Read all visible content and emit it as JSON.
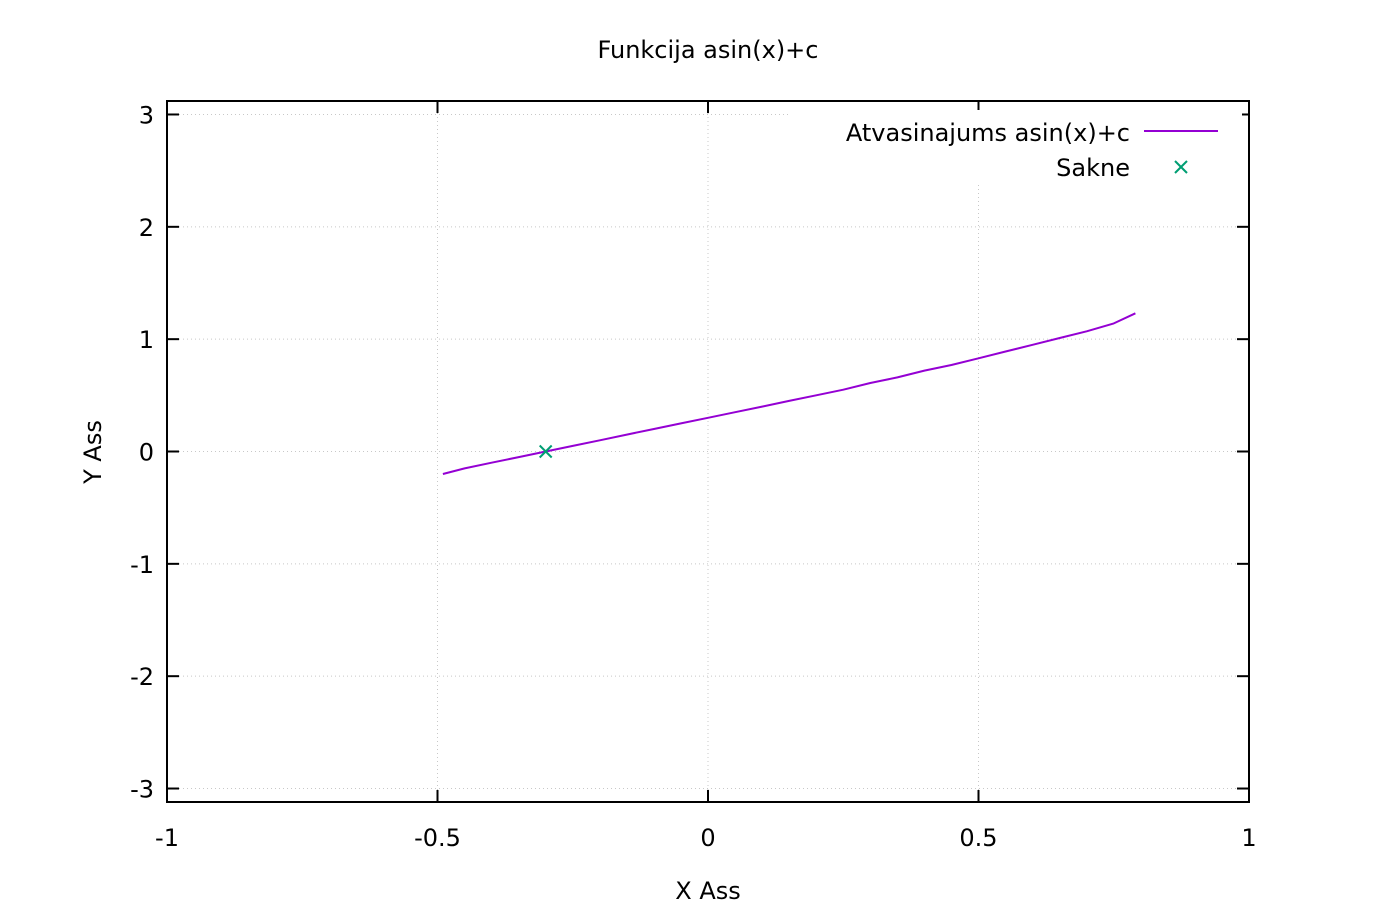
{
  "chart_data": {
    "type": "line",
    "title": "Funkcija asin(x)+c",
    "xlabel": "X Ass",
    "ylabel": "Y Ass",
    "xlim": [
      -1,
      1
    ],
    "ylim": [
      -3.12,
      3.12
    ],
    "xticks": [
      -1,
      -0.5,
      0,
      0.5,
      1
    ],
    "xtick_labels": [
      "-1",
      "-0.5",
      "0",
      "0.5",
      "1"
    ],
    "yticks": [
      -3,
      -2,
      -1,
      0,
      1,
      2,
      3
    ],
    "ytick_labels": [
      "-3",
      "-2",
      "-1",
      "0",
      "1",
      "2",
      "3"
    ],
    "grid": true,
    "legend": "top-right",
    "series": [
      {
        "name": "Atvasinajums asin(x)+c",
        "type": "line",
        "color": "#9400d3",
        "x": [
          -0.49,
          -0.45,
          -0.4,
          -0.35,
          -0.3,
          -0.25,
          -0.2,
          -0.15,
          -0.1,
          -0.05,
          0,
          0.05,
          0.1,
          0.15,
          0.2,
          0.25,
          0.3,
          0.35,
          0.4,
          0.45,
          0.5,
          0.55,
          0.6,
          0.65,
          0.7,
          0.75,
          0.79
        ],
        "y": [
          -0.2,
          -0.15,
          -0.1,
          -0.05,
          0.0,
          0.05,
          0.1,
          0.15,
          0.2,
          0.25,
          0.3,
          0.35,
          0.4,
          0.45,
          0.5,
          0.55,
          0.61,
          0.66,
          0.72,
          0.77,
          0.83,
          0.89,
          0.95,
          1.01,
          1.07,
          1.14,
          1.23
        ]
      },
      {
        "name": "Sakne",
        "type": "scatter",
        "marker": "x",
        "color": "#009e73",
        "x": [
          -0.3
        ],
        "y": [
          0.0
        ]
      }
    ]
  }
}
